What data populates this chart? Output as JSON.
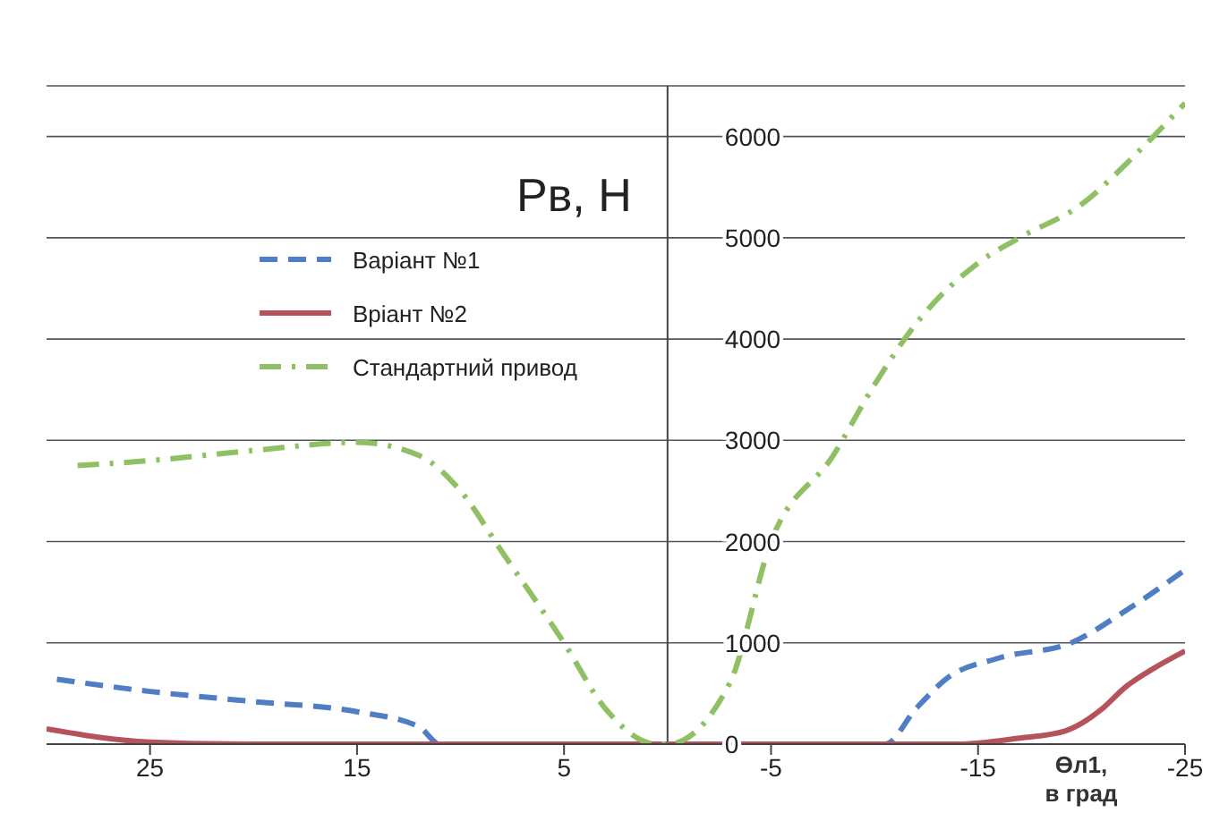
{
  "chart_data": {
    "type": "line",
    "ylabel": "Рв, Н",
    "xlabel": "Өл1, в град",
    "xlim": [
      30,
      -25
    ],
    "xticks": [
      25,
      15,
      5,
      -5,
      -15,
      -25
    ],
    "ylim": [
      0,
      6500
    ],
    "yticks": [
      0,
      1000,
      2000,
      3000,
      4000,
      5000,
      6000
    ],
    "grid": "y",
    "legend": "top left",
    "marker": "none",
    "series": [
      {
        "name": "Варіант №1",
        "color": "#4f7ec4",
        "line_style": "dashed",
        "x": [
          29.5,
          25,
          20,
          15,
          12,
          11,
          -10.5,
          -12,
          -13.5,
          -16,
          -19.5,
          -22,
          -25
        ],
        "values": [
          640,
          520,
          420,
          320,
          170,
          0,
          0,
          350,
          650,
          850,
          1000,
          1300,
          1720
        ]
      },
      {
        "name": "Вріант №2",
        "color": "#b5525a",
        "line_style": "solid",
        "x": [
          30,
          25,
          20,
          0,
          -14,
          -17,
          -19.2,
          -21,
          -22.1,
          -23.5,
          -25
        ],
        "values": [
          150,
          20,
          0,
          0,
          0,
          60,
          130,
          350,
          560,
          750,
          920
        ]
      },
      {
        "name": "Стандартний привод",
        "color": "#8fc063",
        "line_style": "dashdot",
        "x": [
          28.5,
          25,
          20,
          15,
          12,
          10,
          8,
          5,
          3,
          0.5,
          0,
          -3,
          -5,
          -8,
          -10,
          -12,
          -15,
          -17,
          -20,
          -22.5,
          -25
        ],
        "values": [
          2750,
          2800,
          2900,
          2980,
          2850,
          2500,
          1900,
          1000,
          350,
          0,
          0,
          600,
          2000,
          2850,
          3550,
          4150,
          4750,
          5000,
          5330,
          5800,
          6330
        ]
      }
    ]
  }
}
